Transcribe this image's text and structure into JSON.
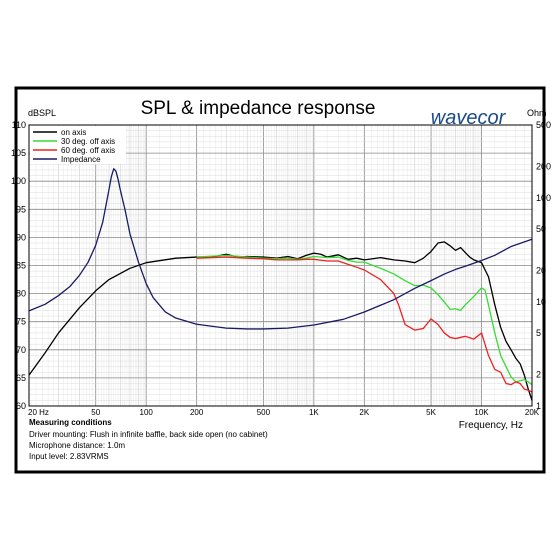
{
  "chart_data": {
    "type": "line",
    "title": "SPL & impedance response",
    "logo_text": "wavecor",
    "xlabel": "Frequency, Hz",
    "ylabel_left": "dBSPL",
    "ylabel_right": "Ohm",
    "x_scale": "log",
    "xlim": [
      20,
      20000
    ],
    "ylim_left": [
      60,
      110
    ],
    "ylim_right": [
      1,
      500
    ],
    "y_scale_right": "log",
    "grid": true,
    "legend_position": "top-left",
    "x_ticks": [
      {
        "value": 20,
        "label": "20 Hz"
      },
      {
        "value": 50,
        "label": "50"
      },
      {
        "value": 100,
        "label": "100"
      },
      {
        "value": 200,
        "label": "200"
      },
      {
        "value": 500,
        "label": "500"
      },
      {
        "value": 1000,
        "label": "1K"
      },
      {
        "value": 2000,
        "label": "2K"
      },
      {
        "value": 5000,
        "label": "5K"
      },
      {
        "value": 10000,
        "label": "10K"
      },
      {
        "value": 20000,
        "label": "20K"
      }
    ],
    "y_ticks_left": [
      60,
      65,
      70,
      75,
      80,
      85,
      90,
      95,
      100,
      105,
      110
    ],
    "y_ticks_right": [
      {
        "value": 1,
        "label": "1"
      },
      {
        "value": 2,
        "label": "2"
      },
      {
        "value": 5,
        "label": "5"
      },
      {
        "value": 10,
        "label": "10"
      },
      {
        "value": 20,
        "label": "20"
      },
      {
        "value": 50,
        "label": "50"
      },
      {
        "value": 100,
        "label": "100"
      },
      {
        "value": 200,
        "label": "200"
      },
      {
        "value": 500,
        "label": "500"
      }
    ],
    "series": [
      {
        "name": "on axis",
        "color": "#000000",
        "axis": "left",
        "points": [
          [
            20,
            65.5
          ],
          [
            25,
            69.5
          ],
          [
            30,
            73
          ],
          [
            40,
            77.5
          ],
          [
            50,
            80.5
          ],
          [
            60,
            82.5
          ],
          [
            80,
            84.5
          ],
          [
            100,
            85.5
          ],
          [
            150,
            86.3
          ],
          [
            200,
            86.5
          ],
          [
            250,
            86.5
          ],
          [
            300,
            87
          ],
          [
            350,
            86.5
          ],
          [
            400,
            86.6
          ],
          [
            500,
            86.5
          ],
          [
            600,
            86.3
          ],
          [
            700,
            86.6
          ],
          [
            800,
            86.2
          ],
          [
            900,
            86.8
          ],
          [
            1000,
            87.2
          ],
          [
            1100,
            87
          ],
          [
            1200,
            86.5
          ],
          [
            1400,
            86.9
          ],
          [
            1600,
            86.1
          ],
          [
            1800,
            86.3
          ],
          [
            2000,
            86
          ],
          [
            2500,
            86.4
          ],
          [
            3000,
            86
          ],
          [
            3500,
            85.8
          ],
          [
            4000,
            85.5
          ],
          [
            4500,
            86.3
          ],
          [
            5000,
            87.5
          ],
          [
            5500,
            89
          ],
          [
            6000,
            89.2
          ],
          [
            6500,
            88.5
          ],
          [
            7000,
            87.7
          ],
          [
            7500,
            88.2
          ],
          [
            8000,
            87.3
          ],
          [
            8500,
            86.5
          ],
          [
            9000,
            86
          ],
          [
            10000,
            85.5
          ],
          [
            11000,
            83
          ],
          [
            12000,
            78
          ],
          [
            13000,
            74
          ],
          [
            14000,
            71.5
          ],
          [
            15000,
            70
          ],
          [
            16000,
            68.5
          ],
          [
            17000,
            67.5
          ],
          [
            18000,
            65.5
          ],
          [
            19000,
            63
          ],
          [
            20000,
            61
          ]
        ]
      },
      {
        "name": "30 deg. off axis",
        "color": "#33dd33",
        "axis": "left",
        "points": [
          [
            200,
            86.5
          ],
          [
            300,
            86.8
          ],
          [
            400,
            86.5
          ],
          [
            500,
            86.3
          ],
          [
            600,
            86.2
          ],
          [
            700,
            86.3
          ],
          [
            800,
            86.1
          ],
          [
            900,
            86.3
          ],
          [
            1000,
            86.6
          ],
          [
            1200,
            86.4
          ],
          [
            1400,
            86.5
          ],
          [
            1600,
            85.9
          ],
          [
            1800,
            85.6
          ],
          [
            2000,
            85.6
          ],
          [
            2500,
            84.5
          ],
          [
            3000,
            83.5
          ],
          [
            3500,
            82.3
          ],
          [
            4000,
            81.4
          ],
          [
            4500,
            81.5
          ],
          [
            5000,
            81
          ],
          [
            5500,
            79.8
          ],
          [
            6000,
            78.5
          ],
          [
            6500,
            77.2
          ],
          [
            7000,
            77.3
          ],
          [
            7500,
            77
          ],
          [
            8000,
            78
          ],
          [
            9000,
            79.5
          ],
          [
            10000,
            81
          ],
          [
            10500,
            80.6
          ],
          [
            11000,
            78
          ],
          [
            12000,
            73
          ],
          [
            13000,
            69
          ],
          [
            14000,
            67
          ],
          [
            15000,
            65.2
          ],
          [
            16000,
            64.3
          ],
          [
            17000,
            64.5
          ],
          [
            18000,
            64.7
          ],
          [
            19000,
            64.3
          ],
          [
            20000,
            63.8
          ]
        ]
      },
      {
        "name": "60 deg. off axis",
        "color": "#ee2222",
        "axis": "left",
        "points": [
          [
            200,
            86.3
          ],
          [
            300,
            86.5
          ],
          [
            400,
            86.3
          ],
          [
            500,
            86.2
          ],
          [
            600,
            86
          ],
          [
            700,
            86
          ],
          [
            800,
            86
          ],
          [
            900,
            86.1
          ],
          [
            1000,
            86.1
          ],
          [
            1200,
            85.8
          ],
          [
            1400,
            85.8
          ],
          [
            1600,
            85.2
          ],
          [
            1800,
            84.7
          ],
          [
            2000,
            84.2
          ],
          [
            2500,
            82.5
          ],
          [
            3000,
            80
          ],
          [
            3200,
            78
          ],
          [
            3500,
            74.5
          ],
          [
            4000,
            73.5
          ],
          [
            4500,
            73.8
          ],
          [
            5000,
            75.5
          ],
          [
            5500,
            74.5
          ],
          [
            6000,
            73
          ],
          [
            6500,
            72.2
          ],
          [
            7000,
            72
          ],
          [
            8000,
            72.4
          ],
          [
            9000,
            71.9
          ],
          [
            10000,
            73
          ],
          [
            11000,
            69
          ],
          [
            12000,
            66.5
          ],
          [
            13000,
            66
          ],
          [
            14000,
            64
          ],
          [
            15000,
            63.8
          ],
          [
            16000,
            64.3
          ],
          [
            17000,
            64
          ],
          [
            18000,
            63
          ],
          [
            19000,
            62.8
          ],
          [
            20000,
            62.5
          ]
        ]
      },
      {
        "name": "Impedance",
        "color": "#1a1a66",
        "axis": "right",
        "points": [
          [
            20,
            8.2
          ],
          [
            25,
            9.5
          ],
          [
            30,
            11.5
          ],
          [
            35,
            14
          ],
          [
            40,
            18
          ],
          [
            45,
            24
          ],
          [
            50,
            35
          ],
          [
            55,
            58
          ],
          [
            58,
            90
          ],
          [
            60,
            120
          ],
          [
            62,
            160
          ],
          [
            64,
            190
          ],
          [
            66,
            180
          ],
          [
            68,
            150
          ],
          [
            70,
            120
          ],
          [
            75,
            75
          ],
          [
            80,
            45
          ],
          [
            90,
            24
          ],
          [
            100,
            15
          ],
          [
            110,
            11
          ],
          [
            130,
            8
          ],
          [
            150,
            7
          ],
          [
            200,
            6.1
          ],
          [
            300,
            5.6
          ],
          [
            400,
            5.5
          ],
          [
            500,
            5.5
          ],
          [
            700,
            5.6
          ],
          [
            1000,
            6
          ],
          [
            1500,
            6.8
          ],
          [
            2000,
            8
          ],
          [
            3000,
            10.5
          ],
          [
            4000,
            13.5
          ],
          [
            5000,
            16
          ],
          [
            6000,
            18.5
          ],
          [
            7000,
            20.5
          ],
          [
            8000,
            22
          ],
          [
            10000,
            25
          ],
          [
            12000,
            28
          ],
          [
            15000,
            34
          ],
          [
            20000,
            40
          ]
        ]
      }
    ]
  },
  "notes": {
    "heading": "Measuring conditions",
    "lines": [
      "Driver mounting: Flush in infinite baffle, back side open (no cabinet)",
      "Microphone distance: 1.0m",
      "Input level: 2.83VRMS"
    ]
  }
}
